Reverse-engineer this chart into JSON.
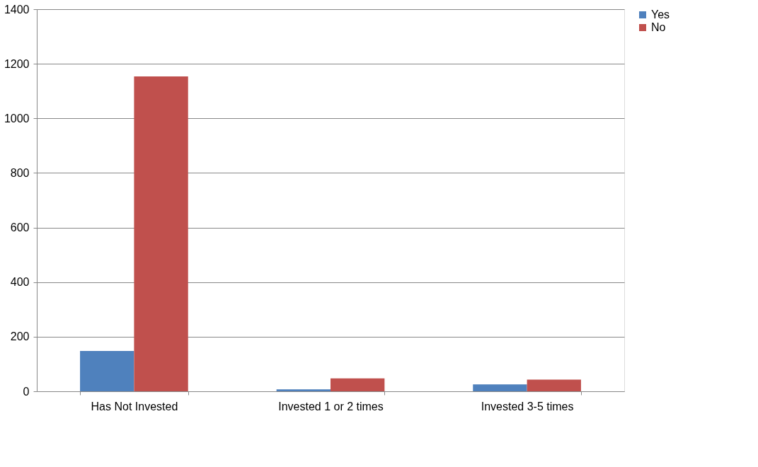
{
  "chart_data": {
    "type": "bar",
    "categories": [
      "Has Not Invested",
      "Invested 1 or 2 times",
      "Invested 3-5 times"
    ],
    "series": [
      {
        "name": "Yes",
        "color": "#4f81bd",
        "values": [
          148,
          7,
          25
        ]
      },
      {
        "name": "No",
        "color": "#c0504d",
        "values": [
          1154,
          47,
          43
        ]
      }
    ],
    "ylim": [
      0,
      1400
    ],
    "yticks": [
      0,
      200,
      400,
      600,
      800,
      1000,
      1200,
      1400
    ],
    "grid": "y",
    "legend": "right"
  }
}
